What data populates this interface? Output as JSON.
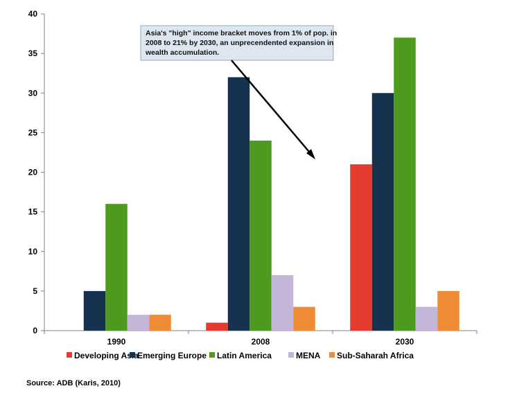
{
  "chart_data": {
    "type": "bar",
    "categories": [
      "1990",
      "2008",
      "2030"
    ],
    "series": [
      {
        "name": "Developing Asia",
        "color": "#e53b2f",
        "values": [
          null,
          1,
          21
        ]
      },
      {
        "name": "Emerging Europe",
        "color": "#15334f",
        "values": [
          5,
          32,
          30
        ]
      },
      {
        "name": "Latin America",
        "color": "#4e9a1e",
        "values": [
          16,
          24,
          37
        ]
      },
      {
        "name": "MENA",
        "color": "#c4b6d8",
        "values": [
          2,
          7,
          3
        ]
      },
      {
        "name": "Sub-Saharah Africa",
        "color": "#ef8a35",
        "values": [
          2,
          3,
          5
        ]
      }
    ],
    "ylim": [
      0,
      40
    ],
    "yticks": [
      0,
      5,
      10,
      15,
      20,
      25,
      30,
      35,
      40
    ],
    "grid": false,
    "legend_position": "bottom",
    "annotation": {
      "lines": [
        "Asia's \"high\" income bracket moves from 1% of pop. in",
        "2008 to 21% by 2030, an unprecendented expansion in",
        "wealth accumulation."
      ]
    },
    "source": "Source: ADB (Karis, 2010)"
  }
}
